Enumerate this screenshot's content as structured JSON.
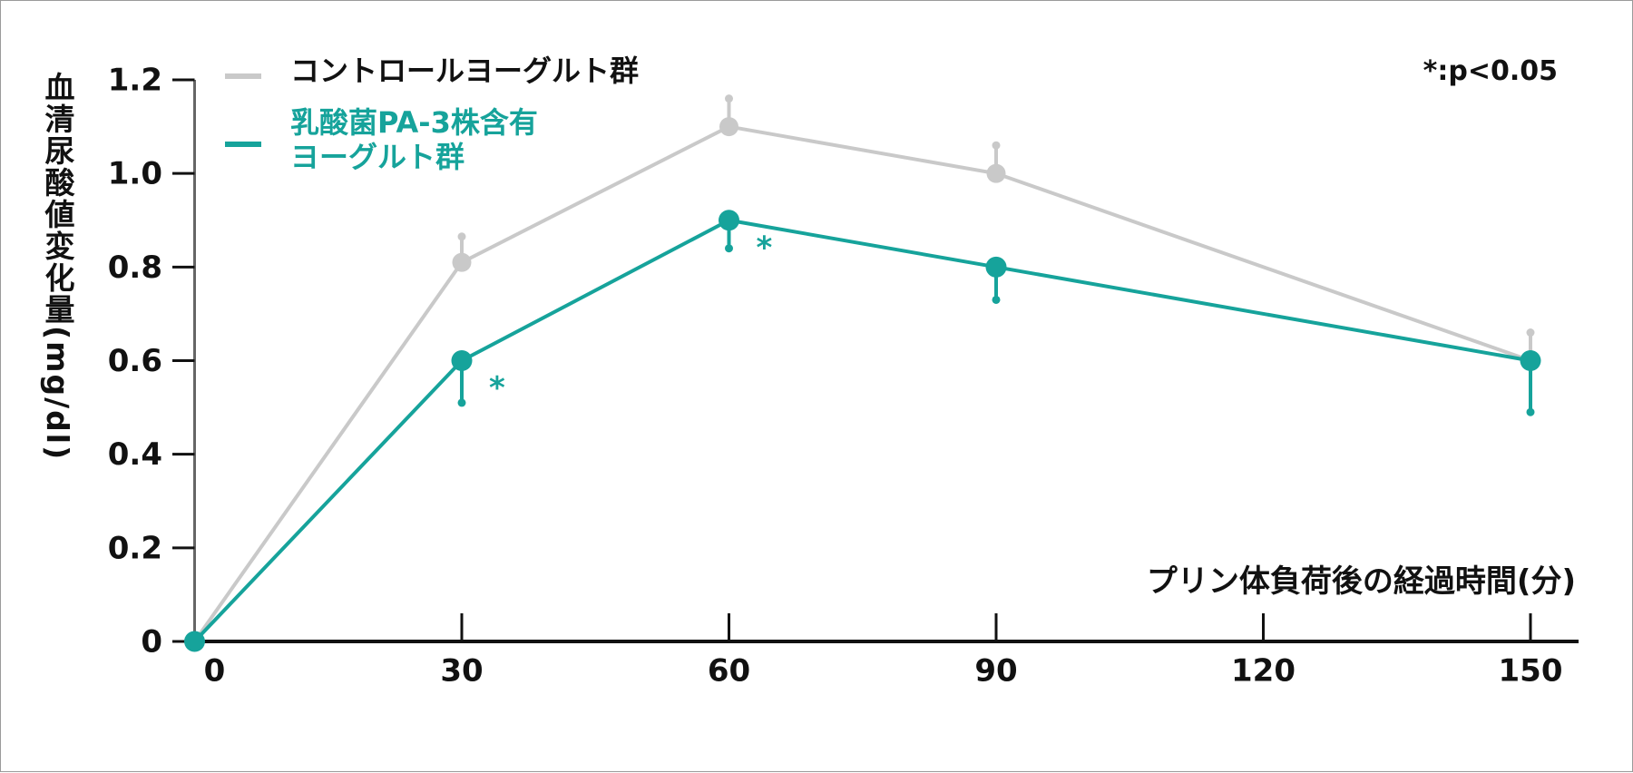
{
  "chart_data": {
    "type": "line",
    "y_label": "血清尿酸値変化量(mg/dl)",
    "x_label": "プリン体負荷後の経過時間(分)",
    "note": "*:p<0.05",
    "x": [
      0,
      30,
      60,
      90,
      150
    ],
    "xlim": [
      0,
      150
    ],
    "xticks": [
      0,
      30,
      60,
      90,
      120,
      150
    ],
    "ylim": [
      0,
      1.2
    ],
    "yticks": [
      0,
      0.2,
      0.4,
      0.6,
      0.8,
      {
        "value": 1,
        "label": "1.0"
      },
      1.2
    ],
    "series": [
      {
        "name": "コントロールヨーグルト群",
        "color": "#c9c9c9",
        "values": [
          0,
          0.81,
          1.1,
          1.0,
          0.6
        ],
        "errors": [
          null,
          0.055,
          0.06,
          0.06,
          0.06
        ],
        "error_direction": "up"
      },
      {
        "name": "乳酸菌PA-3株含有\nヨーグルト群",
        "color": "#16a39b",
        "values": [
          0,
          0.6,
          0.9,
          0.8,
          0.6
        ],
        "errors": [
          null,
          0.09,
          0.06,
          0.07,
          0.11
        ],
        "error_direction": "down",
        "significance_mark": "*",
        "significant_x": [
          30,
          60
        ]
      }
    ]
  }
}
